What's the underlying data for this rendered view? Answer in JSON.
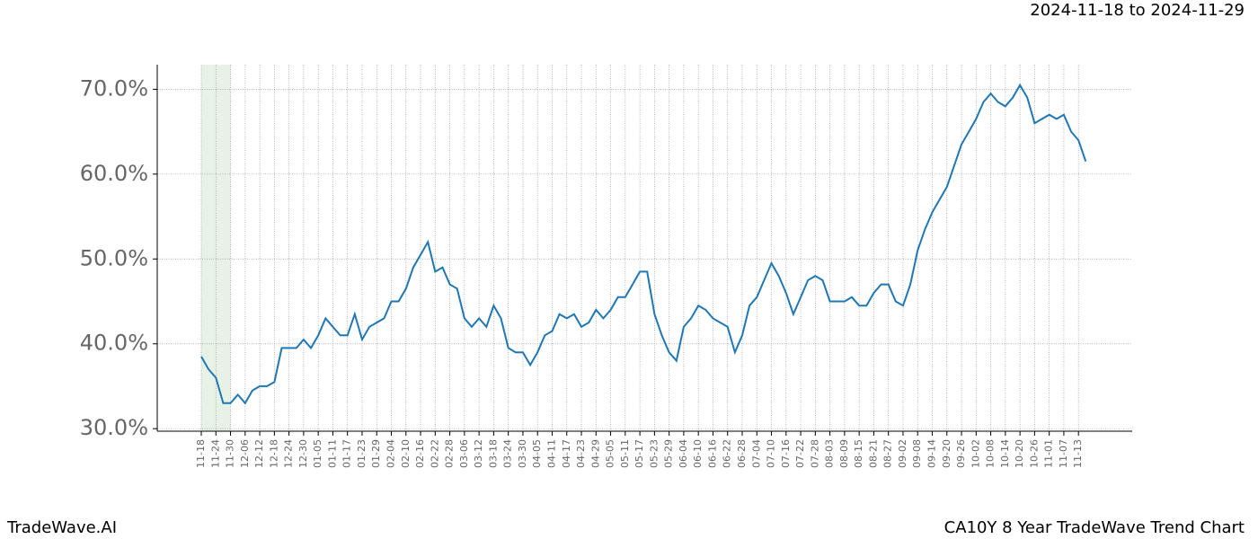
{
  "chart_data": {
    "type": "line",
    "subtitle": "2024-11-18 to 2024-11-29",
    "footer_left": "TradeWave.AI",
    "footer_right": "CA10Y 8 Year TradeWave Trend Chart",
    "categories": [
      "11-18",
      null,
      "11-24",
      null,
      "11-30",
      null,
      "12-06",
      null,
      "12-12",
      null,
      "12-18",
      null,
      "12-24",
      null,
      "12-30",
      null,
      "01-05",
      null,
      "01-11",
      null,
      "01-17",
      null,
      "01-23",
      null,
      "01-29",
      null,
      "02-04",
      null,
      "02-10",
      null,
      "02-16",
      null,
      "02-22",
      null,
      "02-28",
      null,
      "03-06",
      null,
      "03-12",
      null,
      "03-18",
      null,
      "03-24",
      null,
      "03-30",
      null,
      "04-05",
      null,
      "04-11",
      null,
      "04-17",
      null,
      "04-23",
      null,
      "04-29",
      null,
      "05-05",
      null,
      "05-11",
      null,
      "05-17",
      null,
      "05-23",
      null,
      "05-29",
      null,
      "06-04",
      null,
      "06-10",
      null,
      "06-16",
      null,
      "06-22",
      null,
      "06-28",
      null,
      "07-04",
      null,
      "07-10",
      null,
      "07-16",
      null,
      "07-22",
      null,
      "07-28",
      null,
      "08-03",
      null,
      "08-09",
      null,
      "08-15",
      null,
      "08-21",
      null,
      "08-27",
      null,
      "09-02",
      null,
      "09-08",
      null,
      "09-14",
      null,
      "09-20",
      null,
      "09-26",
      null,
      "10-02",
      null,
      "10-08",
      null,
      "10-14",
      null,
      "10-20",
      null,
      "10-26",
      null,
      "11-01",
      null,
      "11-07",
      null,
      "11-13",
      null
    ],
    "values": [
      38.5,
      37,
      36,
      33,
      33,
      34,
      33,
      34.5,
      35,
      35,
      35.5,
      39.5,
      39.5,
      39.5,
      40.5,
      39.5,
      41,
      43,
      42,
      41,
      41,
      43.5,
      40.5,
      42,
      42.5,
      43,
      45,
      45,
      46.5,
      49,
      50.5,
      52,
      48.5,
      49,
      47,
      46.5,
      43,
      42,
      43,
      42,
      44.5,
      43,
      39.5,
      39,
      39,
      37.5,
      39,
      41,
      41.5,
      43.5,
      43,
      43.5,
      42,
      42.5,
      44,
      43,
      44,
      45.5,
      45.5,
      47,
      48.5,
      48.5,
      43.5,
      41,
      39,
      38,
      42,
      43,
      44.5,
      44,
      43,
      42.5,
      42,
      39,
      41,
      44.5,
      45.5,
      47.5,
      49.5,
      48,
      46,
      43.5,
      45.5,
      47.5,
      48,
      47.5,
      45,
      45,
      45,
      45.5,
      44.5,
      44.5,
      46,
      47,
      47,
      45,
      44.5,
      47,
      51,
      53.5,
      55.5,
      57,
      58.5,
      61,
      63.5,
      65,
      66.5,
      68.5,
      69.5,
      68.5,
      68,
      69,
      70.5,
      69,
      66,
      66.5,
      67,
      66.5,
      67,
      65,
      64,
      61.5
    ],
    "color": "#1f77b4",
    "ylim": [
      29.7,
      72.9
    ],
    "yticks": [
      {
        "value": 30,
        "label": "30.0%"
      },
      {
        "value": 40,
        "label": "40.0%"
      },
      {
        "value": 50,
        "label": "50.0%"
      },
      {
        "value": 60,
        "label": "60.0%"
      },
      {
        "value": 70,
        "label": "70.0%"
      }
    ],
    "grid": true
  }
}
